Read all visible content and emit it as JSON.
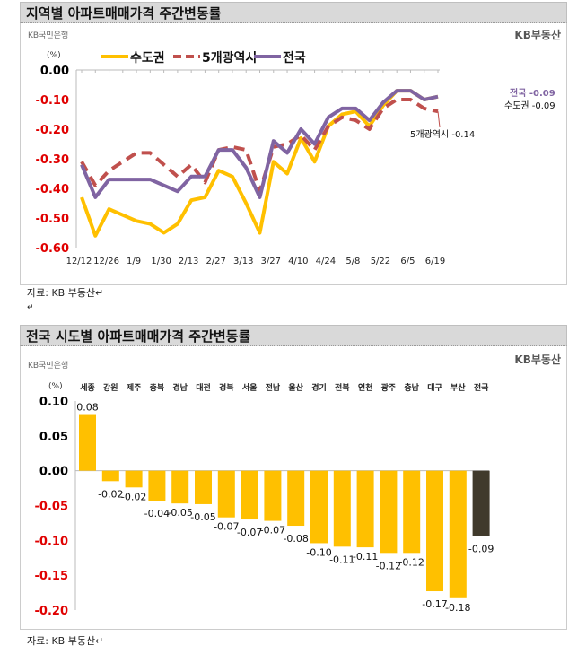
{
  "top": {
    "title": "지역별 아파트매매가격 주간변동률",
    "bank_logo": "KB국민은행",
    "brand_logo": "KB부동산",
    "source": "자료: KB 부동산↵",
    "para_mark": "↵"
  },
  "bottom": {
    "title": "전국 시도별 아파트매매가격 주간변동률",
    "bank_logo": "KB국민은행",
    "brand_logo": "KB부동산",
    "source": "자료: KB 부동산↵"
  },
  "colors": {
    "sudogwon": "#ffc000",
    "metro5": "#c0504d",
    "national": "#8064a2",
    "bar": "#ffc000",
    "bar_national": "#403a2c",
    "neg_tick": "#e00000"
  },
  "chart_data": [
    {
      "type": "line",
      "ylabel": "(%)",
      "ylim": [
        -0.6,
        0.0
      ],
      "yticks": [
        "0.00",
        "-0.10",
        "-0.20",
        "-0.30",
        "-0.40",
        "-0.50",
        "-0.60"
      ],
      "x": [
        "12/12",
        "12/19",
        "12/26",
        "1/2",
        "1/9",
        "1/16",
        "1/30",
        "2/6",
        "2/13",
        "2/20",
        "2/27",
        "3/6",
        "3/13",
        "3/20",
        "3/27",
        "4/3",
        "4/10",
        "4/17",
        "4/24",
        "5/1",
        "5/8",
        "5/15",
        "5/22",
        "5/29",
        "6/5",
        "6/12",
        "6/19"
      ],
      "xtick_labels": [
        "12/12",
        "12/26",
        "1/9",
        "1/30",
        "2/13",
        "2/27",
        "3/13",
        "3/27",
        "4/10",
        "4/24",
        "5/8",
        "5/22",
        "6/5",
        "6/19"
      ],
      "legend": "top",
      "series": [
        {
          "name": "수도권",
          "style": "solid",
          "values": [
            -0.43,
            -0.56,
            -0.47,
            -0.49,
            -0.51,
            -0.52,
            -0.55,
            -0.52,
            -0.44,
            -0.43,
            -0.34,
            -0.36,
            -0.45,
            -0.55,
            -0.31,
            -0.35,
            -0.23,
            -0.31,
            -0.19,
            -0.15,
            -0.14,
            -0.19,
            -0.12,
            -0.07,
            -0.07,
            -0.1,
            -0.09
          ]
        },
        {
          "name": "5개광역시",
          "style": "dashed",
          "values": [
            -0.31,
            -0.39,
            -0.34,
            -0.31,
            -0.28,
            -0.28,
            -0.32,
            -0.36,
            -0.32,
            -0.38,
            -0.27,
            -0.26,
            -0.27,
            -0.41,
            -0.26,
            -0.25,
            -0.22,
            -0.27,
            -0.19,
            -0.16,
            -0.17,
            -0.2,
            -0.13,
            -0.1,
            -0.1,
            -0.13,
            -0.14
          ]
        },
        {
          "name": "전국",
          "style": "solid",
          "values": [
            -0.32,
            -0.43,
            -0.37,
            -0.37,
            -0.37,
            -0.37,
            -0.39,
            -0.41,
            -0.36,
            -0.36,
            -0.27,
            -0.27,
            -0.33,
            -0.43,
            -0.24,
            -0.28,
            -0.2,
            -0.25,
            -0.16,
            -0.13,
            -0.13,
            -0.17,
            -0.11,
            -0.07,
            -0.07,
            -0.1,
            -0.09
          ]
        }
      ],
      "annotations": [
        "전국 -0.09",
        "수도권 -0.09",
        "5개광역시 -0.14"
      ]
    },
    {
      "type": "bar",
      "ylabel": "(%)",
      "ylim": [
        -0.2,
        0.1
      ],
      "yticks": [
        "0.10",
        "0.05",
        "0.00",
        "-0.05",
        "-0.10",
        "-0.15",
        "-0.20"
      ],
      "categories": [
        "세종",
        "강원",
        "제주",
        "충북",
        "경남",
        "대전",
        "경북",
        "서울",
        "전남",
        "울산",
        "경기",
        "전북",
        "인천",
        "광주",
        "충남",
        "대구",
        "부산",
        "전국"
      ],
      "values": [
        0.08,
        -0.015,
        -0.024,
        -0.043,
        -0.047,
        -0.048,
        -0.067,
        -0.07,
        -0.072,
        -0.079,
        -0.104,
        -0.109,
        -0.11,
        -0.118,
        -0.118,
        -0.173,
        -0.183,
        -0.094
      ],
      "labels": [
        "0.08",
        "-0.02",
        "-0.02",
        "-0.04",
        "-0.05",
        "-0.05",
        "-0.07",
        "-0.07",
        "-0.07",
        "-0.08",
        "-0.10",
        "-0.11",
        "-0.11",
        "-0.12",
        "-0.12",
        "-0.17",
        "-0.18",
        "-0.09"
      ]
    }
  ]
}
